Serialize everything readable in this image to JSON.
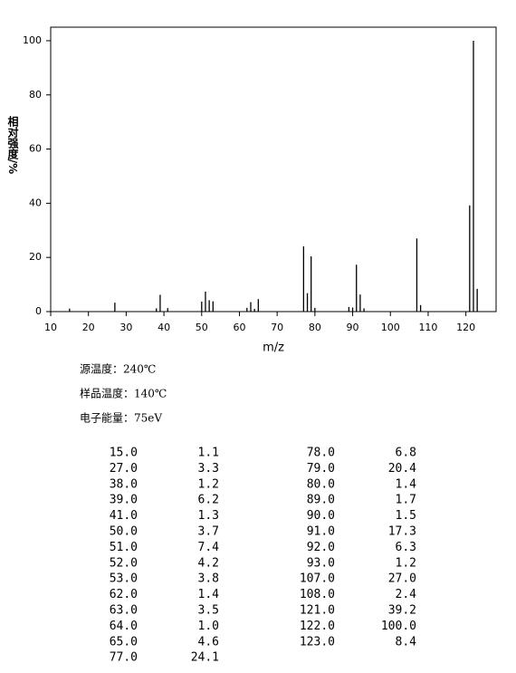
{
  "chart_data": {
    "type": "bar",
    "y_label": "相对强度/%",
    "x_label": "m/z",
    "x": [
      15,
      27,
      38,
      39,
      41,
      50,
      51,
      52,
      53,
      62,
      63,
      64,
      65,
      77,
      78,
      79,
      80,
      89,
      90,
      91,
      92,
      93,
      107,
      108,
      121,
      122,
      123
    ],
    "values": [
      1.1,
      3.3,
      1.2,
      6.2,
      1.3,
      3.7,
      7.4,
      4.2,
      3.8,
      1.4,
      3.5,
      1.0,
      4.6,
      24.1,
      6.8,
      20.4,
      1.4,
      1.7,
      1.5,
      17.3,
      6.3,
      1.2,
      27.0,
      2.4,
      39.2,
      100.0,
      8.4
    ],
    "color": "#000000",
    "xlim": [
      10,
      128
    ],
    "xticks": [
      10,
      20,
      30,
      40,
      50,
      60,
      70,
      80,
      90,
      100,
      110,
      120
    ],
    "ylim": [
      0,
      105
    ],
    "yticks": [
      0,
      20,
      40,
      60,
      80,
      100
    ]
  },
  "info": [
    "源温度：240℃",
    "样品温度：140℃",
    "电子能量：75eV"
  ],
  "table": {
    "rows": [
      [
        "15.0",
        "1.1"
      ],
      [
        "27.0",
        "3.3"
      ],
      [
        "38.0",
        "1.2"
      ],
      [
        "39.0",
        "6.2"
      ],
      [
        "41.0",
        "1.3"
      ],
      [
        "50.0",
        "3.7"
      ],
      [
        "51.0",
        "7.4"
      ],
      [
        "52.0",
        "4.2"
      ],
      [
        "53.0",
        "3.8"
      ],
      [
        "62.0",
        "1.4"
      ],
      [
        "63.0",
        "3.5"
      ],
      [
        "64.0",
        "1.0"
      ],
      [
        "65.0",
        "4.6"
      ],
      [
        "77.0",
        "24.1"
      ],
      [
        "78.0",
        "6.8"
      ],
      [
        "79.0",
        "20.4"
      ],
      [
        "80.0",
        "1.4"
      ],
      [
        "89.0",
        "1.7"
      ],
      [
        "90.0",
        "1.5"
      ],
      [
        "91.0",
        "17.3"
      ],
      [
        "92.0",
        "6.3"
      ],
      [
        "93.0",
        "1.2"
      ],
      [
        "107.0",
        "27.0"
      ],
      [
        "108.0",
        "2.4"
      ],
      [
        "121.0",
        "39.2"
      ],
      [
        "122.0",
        "100.0"
      ],
      [
        "123.0",
        "8.4"
      ]
    ]
  }
}
